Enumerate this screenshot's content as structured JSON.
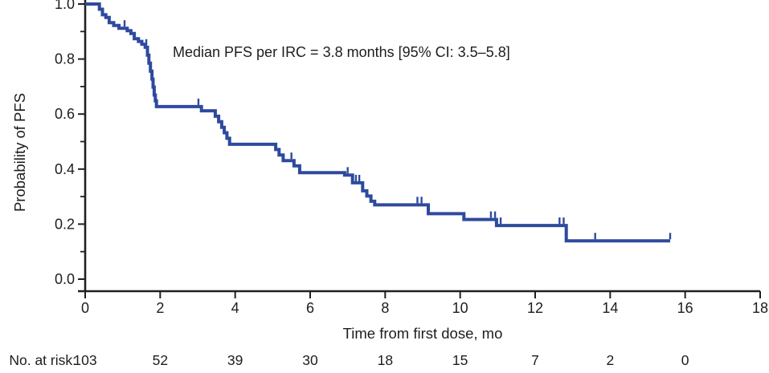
{
  "chart_data": {
    "type": "line",
    "subtype": "kaplan-meier-step",
    "title": "",
    "annotation": "Median PFS per IRC = 3.8 months [95% CI: 3.5–5.8]",
    "xlabel": "Time from first dose, mo",
    "ylabel": "Probability of PFS",
    "xlim": [
      0,
      18
    ],
    "ylim": [
      0.0,
      1.0
    ],
    "x_ticks": [
      0,
      2,
      4,
      6,
      8,
      10,
      12,
      14,
      16,
      18
    ],
    "y_major_ticks": [
      0.0,
      0.2,
      0.4,
      0.6,
      0.8,
      1.0
    ],
    "y_major_tick_labels": [
      "0.0",
      "0.2",
      "0.4",
      "0.6",
      "0.8",
      "1.0"
    ],
    "y_minor_ticks": [
      0.1,
      0.3,
      0.5,
      0.7,
      0.9
    ],
    "grid": false,
    "legend": "none",
    "line_color": "#2e4a9e",
    "axis_color": "#231f20",
    "text_color": "#1d1d1f",
    "steps": [
      [
        0.0,
        1.0
      ],
      [
        0.38,
        0.981
      ],
      [
        0.46,
        0.961
      ],
      [
        0.55,
        0.951
      ],
      [
        0.64,
        0.932
      ],
      [
        0.76,
        0.922
      ],
      [
        0.9,
        0.912
      ],
      [
        1.12,
        0.903
      ],
      [
        1.22,
        0.893
      ],
      [
        1.31,
        0.874
      ],
      [
        1.42,
        0.864
      ],
      [
        1.51,
        0.854
      ],
      [
        1.6,
        0.843
      ],
      [
        1.66,
        0.814
      ],
      [
        1.7,
        0.785
      ],
      [
        1.74,
        0.756
      ],
      [
        1.78,
        0.727
      ],
      [
        1.81,
        0.698
      ],
      [
        1.84,
        0.669
      ],
      [
        1.87,
        0.648
      ],
      [
        1.9,
        0.627
      ],
      [
        3.1,
        0.612
      ],
      [
        3.47,
        0.592
      ],
      [
        3.56,
        0.572
      ],
      [
        3.64,
        0.552
      ],
      [
        3.71,
        0.532
      ],
      [
        3.78,
        0.512
      ],
      [
        3.85,
        0.49
      ],
      [
        5.08,
        0.471
      ],
      [
        5.17,
        0.451
      ],
      [
        5.28,
        0.431
      ],
      [
        5.57,
        0.412
      ],
      [
        5.72,
        0.387
      ],
      [
        6.92,
        0.378
      ],
      [
        7.13,
        0.35
      ],
      [
        7.4,
        0.321
      ],
      [
        7.51,
        0.302
      ],
      [
        7.62,
        0.283
      ],
      [
        7.72,
        0.27
      ],
      [
        9.15,
        0.238
      ],
      [
        10.1,
        0.217
      ],
      [
        10.97,
        0.195
      ],
      [
        12.83,
        0.139
      ]
    ],
    "curve_end_time": 15.6,
    "censor_marks": [
      [
        1.05,
        0.912
      ],
      [
        1.63,
        0.843
      ],
      [
        3.02,
        0.627
      ],
      [
        5.5,
        0.431
      ],
      [
        7.0,
        0.378
      ],
      [
        7.22,
        0.35
      ],
      [
        7.31,
        0.35
      ],
      [
        8.86,
        0.27
      ],
      [
        8.97,
        0.27
      ],
      [
        10.82,
        0.217
      ],
      [
        10.93,
        0.217
      ],
      [
        11.08,
        0.195
      ],
      [
        12.65,
        0.195
      ],
      [
        12.76,
        0.195
      ],
      [
        13.6,
        0.139
      ],
      [
        15.6,
        0.139
      ]
    ],
    "at_risk": {
      "label": "No. at risk:",
      "times": [
        0,
        2,
        4,
        6,
        8,
        10,
        12,
        14,
        16
      ],
      "values": [
        "103",
        "52",
        "39",
        "30",
        "18",
        "15",
        "7",
        "2",
        "0"
      ]
    }
  }
}
